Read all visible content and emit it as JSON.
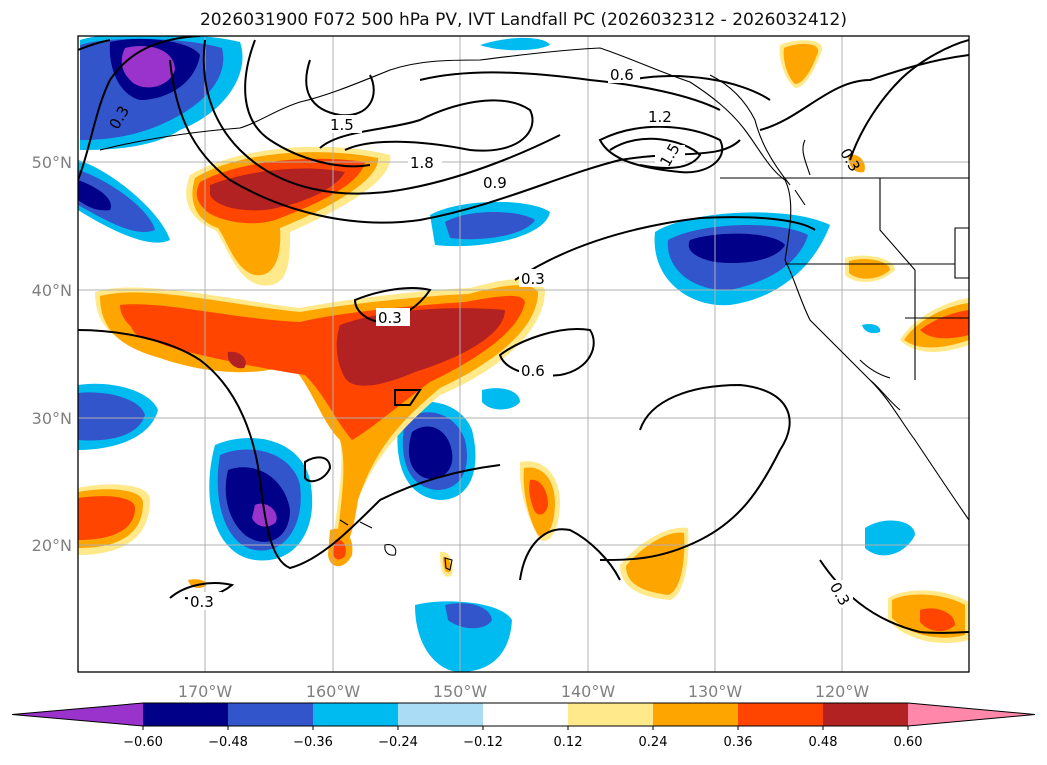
{
  "title": "2026031900 F072 500 hPa PV, IVT Landfall PC (2026032312 - 2026032412)",
  "lat_labels": [
    "50°N",
    "40°N",
    "30°N",
    "20°N"
  ],
  "lon_labels": [
    "170°W",
    "160°W",
    "150°W",
    "140°W",
    "130°W",
    "120°W"
  ],
  "contour_labels": [
    "0.6",
    "1.2",
    "1.5",
    "1.5",
    "1.8",
    "0.9",
    "0.3",
    "0.3",
    "0.6",
    "0.3",
    "0.3",
    "0.3",
    "0.3"
  ],
  "colorbar": {
    "ticks": [
      "−0.60",
      "−0.48",
      "−0.36",
      "−0.24",
      "−0.12",
      "0.12",
      "0.24",
      "0.36",
      "0.48",
      "0.60"
    ],
    "colors": [
      "#9933cc",
      "#000088",
      "#3355cc",
      "#00bbf0",
      "#aaddf5",
      "#ffffff",
      "#ffe98a",
      "#ffa500",
      "#ff4500",
      "#b22222",
      "#ff88aa"
    ]
  }
}
